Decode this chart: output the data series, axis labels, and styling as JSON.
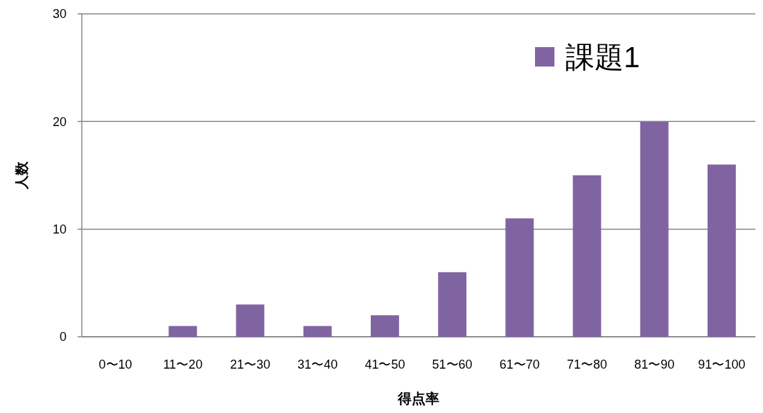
{
  "chart_data": {
    "type": "bar",
    "xlabel": "得点率",
    "ylabel": "人数",
    "categories": [
      "0〜10",
      "11〜20",
      "21〜30",
      "31〜40",
      "41〜50",
      "51〜60",
      "61〜70",
      "71〜80",
      "81〜90",
      "91〜100"
    ],
    "series": [
      {
        "name": "課題1",
        "color": "#8064a2",
        "values": [
          0,
          1,
          3,
          1,
          2,
          6,
          11,
          15,
          20,
          16
        ]
      }
    ],
    "ylim": [
      0,
      30
    ],
    "yticks": [
      0,
      10,
      20,
      30
    ],
    "grid": "y",
    "legend": "top right"
  }
}
